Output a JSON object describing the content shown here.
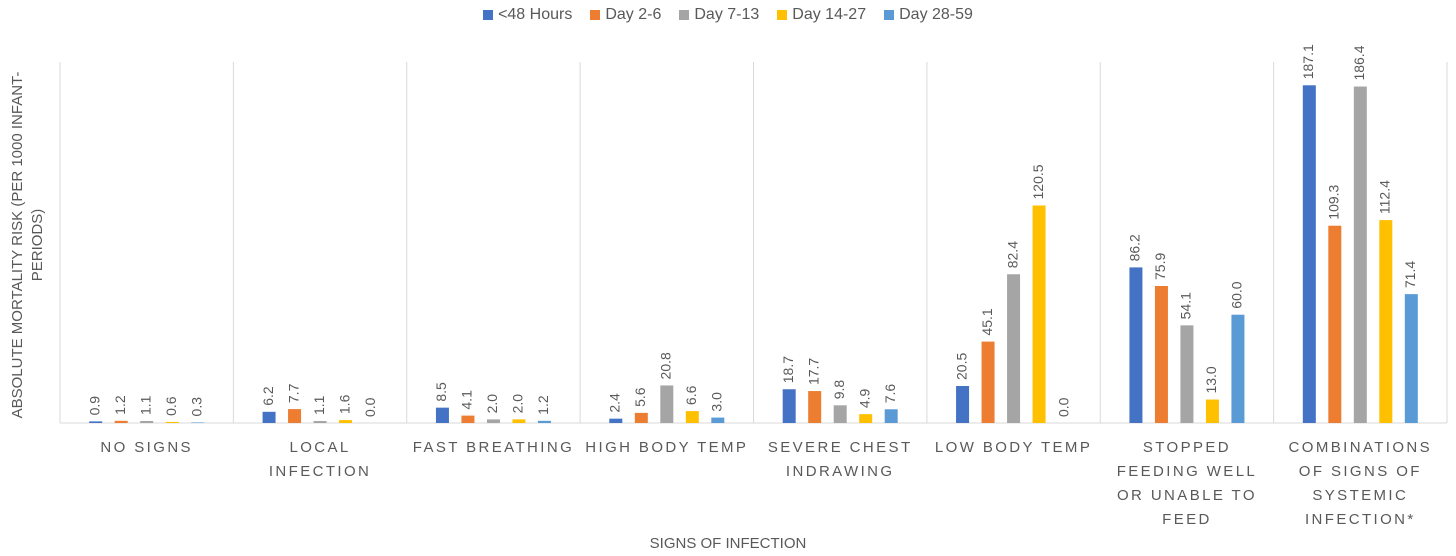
{
  "chart_data": {
    "type": "bar",
    "y_label": "ABSOLUTE MORTALITY RISK (PER 1000 INFANT-PERIODS)",
    "x_label": "SIGNS OF INFECTION",
    "categories": [
      "NO SIGNS",
      "LOCAL INFECTION",
      "FAST BREATHING",
      "HIGH BODY TEMP",
      "SEVERE CHEST INDRAWING",
      "LOW BODY TEMP",
      "STOPPED FEEDING WELL OR UNABLE TO FEED",
      "COMBINATIONS OF SIGNS OF SYSTEMIC INFECTION*"
    ],
    "series": [
      {
        "name": "<48 Hours",
        "color": "#4472c4",
        "values": [
          0.9,
          6.2,
          8.5,
          2.4,
          18.7,
          20.5,
          86.2,
          187.1
        ],
        "value_labels": [
          "0.9",
          "6.2",
          "8.5",
          "2.4",
          "18.7",
          "20.5",
          "86.2",
          "187.1"
        ]
      },
      {
        "name": "Day 2-6",
        "color": "#ed7d31",
        "values": [
          1.2,
          7.7,
          4.1,
          5.6,
          17.7,
          45.1,
          75.9,
          109.3
        ],
        "value_labels": [
          "1.2",
          "7.7",
          "4.1",
          "5.6",
          "17.7",
          "45.1",
          "75.9",
          "109.3"
        ]
      },
      {
        "name": "Day 7-13",
        "color": "#a5a5a5",
        "values": [
          1.1,
          1.1,
          2.0,
          20.8,
          9.8,
          82.4,
          54.1,
          186.4
        ],
        "value_labels": [
          "1.1",
          "1.1",
          "2.0",
          "20.8",
          "9.8",
          "82.4",
          "54.1",
          "186.4"
        ]
      },
      {
        "name": "Day 14-27",
        "color": "#ffc000",
        "values": [
          0.6,
          1.6,
          2.0,
          6.6,
          4.9,
          120.5,
          13.0,
          112.4
        ],
        "value_labels": [
          "0.6",
          "1.6",
          "2.0",
          "6.6",
          "4.9",
          "120.5",
          "13.0",
          "112.4"
        ]
      },
      {
        "name": "Day 28-59",
        "color": "#5b9bd5",
        "values": [
          0.3,
          0.0,
          1.2,
          3.0,
          7.6,
          0.0,
          60.0,
          71.4
        ],
        "value_labels": [
          "0.3",
          "0.0",
          "1.2",
          "3.0",
          "7.6",
          "0.0",
          "60.0",
          "71.4"
        ]
      }
    ],
    "ylim": [
      0,
      200
    ],
    "legend": "top"
  }
}
